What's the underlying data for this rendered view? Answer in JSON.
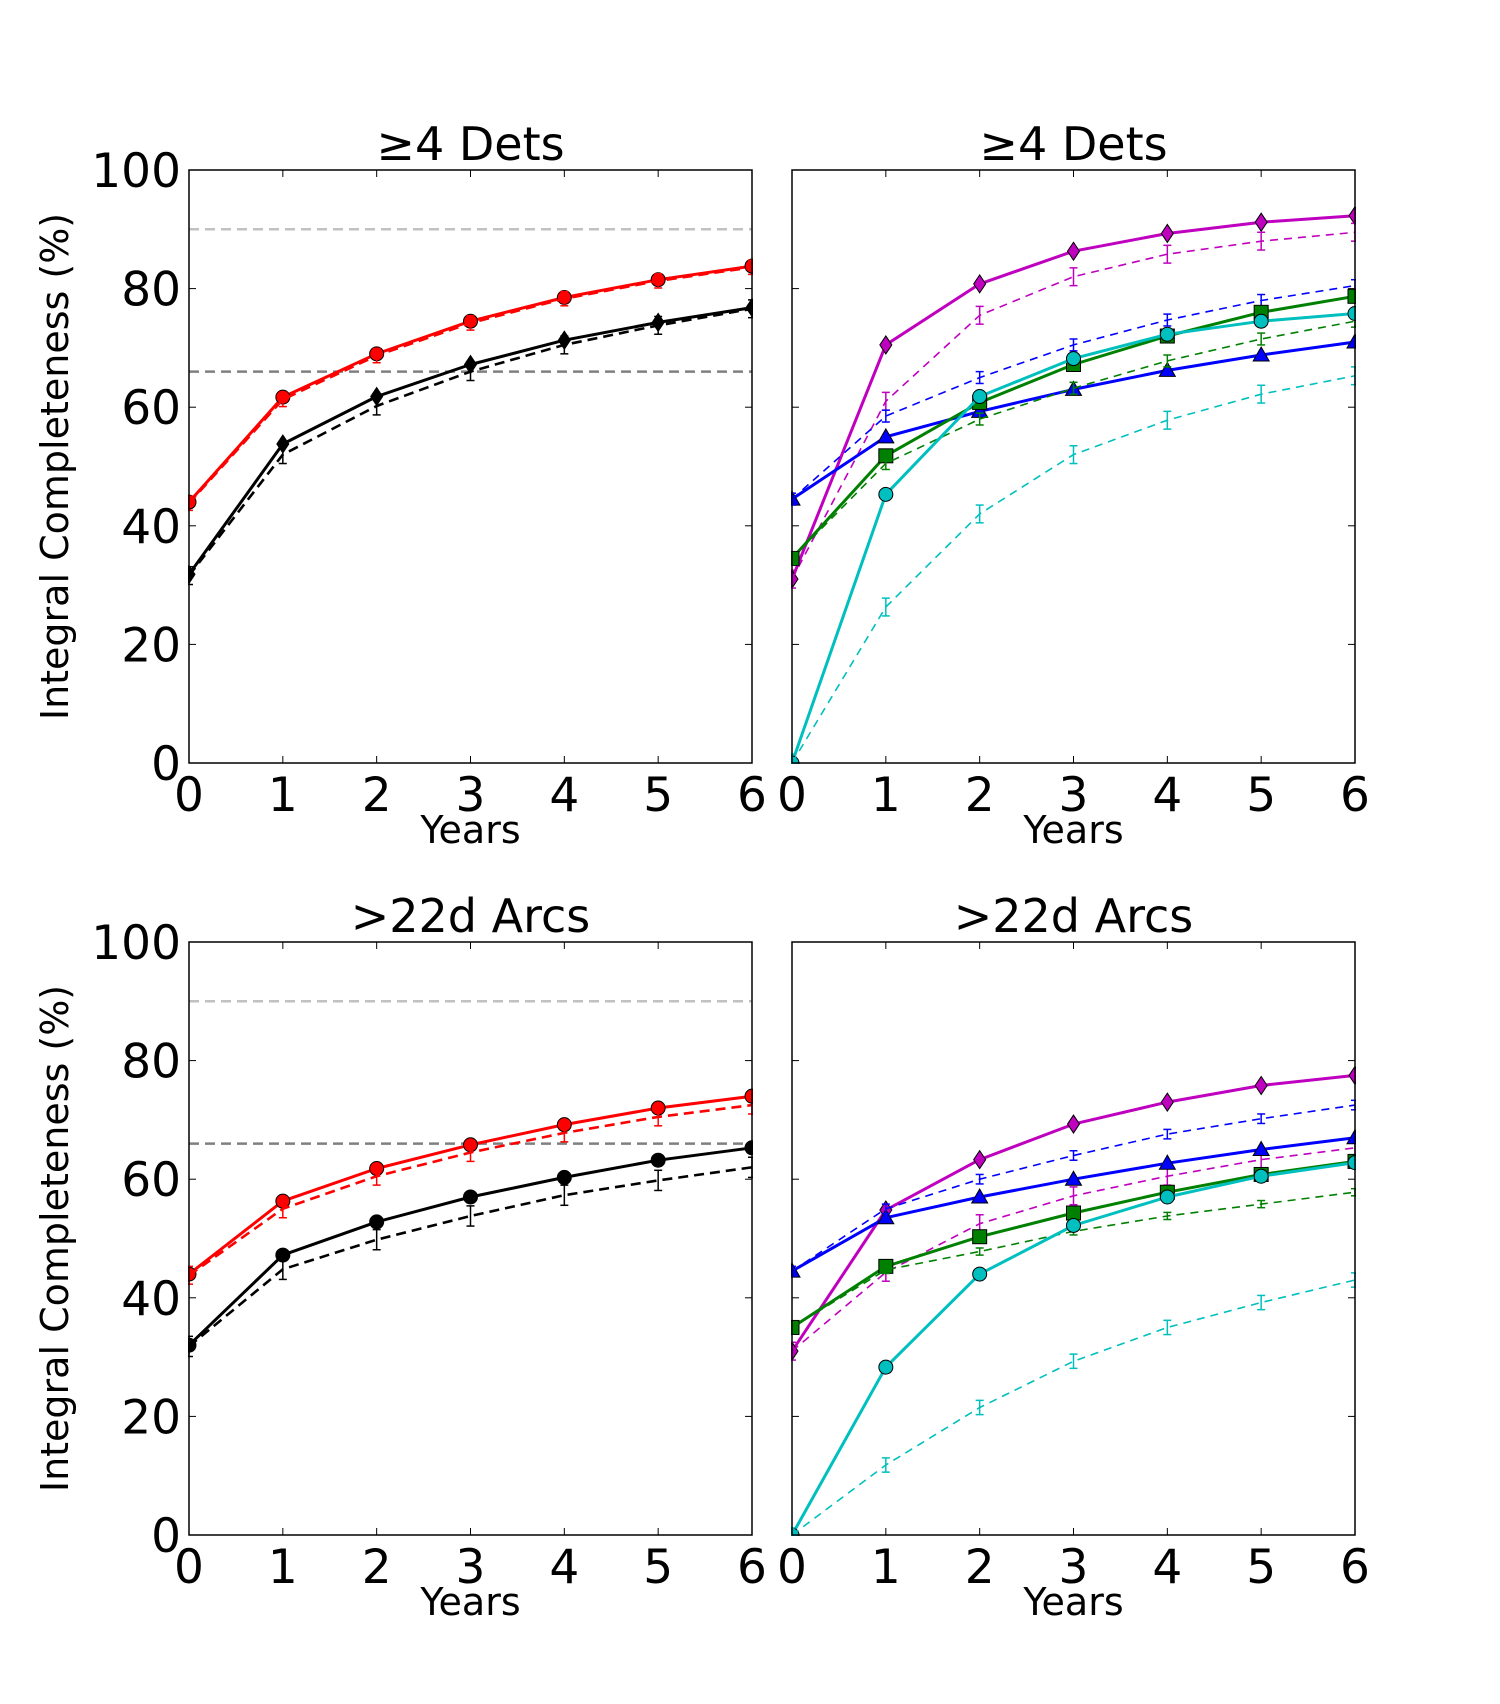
{
  "chart_data": [
    {
      "type": "line",
      "panel": "top-left",
      "title": "≥4 Dets",
      "xlabel": "Years",
      "ylabel": "Integral Completeness (%)",
      "xlim": [
        0,
        6
      ],
      "ylim": [
        0,
        100
      ],
      "xticks": [
        "0",
        "1",
        "2",
        "3",
        "4",
        "5",
        "6"
      ],
      "yticks": [
        "0",
        "20",
        "40",
        "60",
        "80",
        "100"
      ],
      "reference_lines": [
        {
          "y": 90,
          "color": "#c0c0c0"
        },
        {
          "y": 66,
          "color": "#808080"
        }
      ],
      "x": [
        0,
        1,
        2,
        3,
        4,
        5,
        6
      ],
      "series": [
        {
          "name": "red-solid",
          "color": "#ff0000",
          "dash": false,
          "marker": "circle",
          "values": [
            44,
            61.7,
            69,
            74.5,
            78.5,
            81.5,
            83.8
          ]
        },
        {
          "name": "red-dashed",
          "color": "#ff0000",
          "dash": true,
          "marker": "errorbar",
          "values": [
            43.8,
            61.3,
            68.7,
            74.2,
            78.3,
            81.3,
            83.6
          ],
          "err": 1.2
        },
        {
          "name": "black-solid",
          "color": "#000000",
          "dash": false,
          "marker": "thin_diamond",
          "values": [
            31.8,
            53.8,
            61.8,
            67.2,
            71.3,
            74.3,
            76.8
          ]
        },
        {
          "name": "black-dashed",
          "color": "#000000",
          "dash": true,
          "marker": "errorbar",
          "values": [
            31.6,
            52,
            60.2,
            66,
            70.5,
            73.8,
            76.6
          ],
          "err": 1.5
        }
      ]
    },
    {
      "type": "line",
      "panel": "top-right",
      "title": "≥4 Dets",
      "xlabel": "Years",
      "ylabel": "",
      "xlim": [
        0,
        6
      ],
      "ylim": [
        0,
        100
      ],
      "xticks": [
        "0",
        "1",
        "2",
        "3",
        "4",
        "5",
        "6"
      ],
      "yticks": [],
      "reference_lines": [],
      "x": [
        0,
        1,
        2,
        3,
        4,
        5,
        6
      ],
      "series": [
        {
          "name": "magenta-solid",
          "color": "#bf00bf",
          "dash": false,
          "marker": "thin_diamond",
          "values": [
            31,
            70.5,
            80.8,
            86.3,
            89.3,
            91.2,
            92.3
          ]
        },
        {
          "name": "magenta-dashed",
          "color": "#bf00bf",
          "dash": true,
          "marker": "errorbar",
          "values": [
            31,
            61,
            75.5,
            82,
            85.8,
            88,
            89.5
          ],
          "err": 1.5
        },
        {
          "name": "blue-solid",
          "color": "#0000ff",
          "dash": false,
          "marker": "triangle",
          "values": [
            44.5,
            55,
            59.3,
            63,
            66.2,
            68.8,
            71
          ]
        },
        {
          "name": "blue-dashed",
          "color": "#0000ff",
          "dash": true,
          "marker": "errorbar",
          "values": [
            44.5,
            58.5,
            65,
            70.5,
            74.7,
            78,
            80.5
          ],
          "err": 1.0
        },
        {
          "name": "green-solid",
          "color": "#008000",
          "dash": false,
          "marker": "square",
          "values": [
            34.5,
            51.8,
            60.8,
            67.2,
            72,
            76,
            78.7
          ]
        },
        {
          "name": "green-dashed",
          "color": "#008000",
          "dash": true,
          "marker": "errorbar",
          "values": [
            34.5,
            50.5,
            58,
            63.2,
            67.8,
            71.5,
            74.5
          ],
          "err": 1.0
        },
        {
          "name": "cyan-solid",
          "color": "#00bfbf",
          "dash": false,
          "marker": "circle",
          "values": [
            0,
            45.3,
            61.8,
            68.2,
            72.3,
            74.5,
            75.8
          ]
        },
        {
          "name": "cyan-dashed",
          "color": "#00bfbf",
          "dash": true,
          "marker": "errorbar",
          "values": [
            0,
            26.3,
            42,
            52,
            57.8,
            62.2,
            65.3
          ],
          "err": 1.5
        }
      ]
    },
    {
      "type": "line",
      "panel": "bottom-left",
      "title": ">22d Arcs",
      "xlabel": "Years",
      "ylabel": "Integral Completeness (%)",
      "xlim": [
        0,
        6
      ],
      "ylim": [
        0,
        100
      ],
      "xticks": [
        "0",
        "1",
        "2",
        "3",
        "4",
        "5",
        "6"
      ],
      "yticks": [
        "0",
        "20",
        "40",
        "60",
        "80",
        "100"
      ],
      "reference_lines": [
        {
          "y": 90,
          "color": "#c0c0c0"
        },
        {
          "y": 66,
          "color": "#808080"
        }
      ],
      "x": [
        0,
        1,
        2,
        3,
        4,
        5,
        6
      ],
      "series": [
        {
          "name": "red-solid",
          "color": "#ff0000",
          "dash": false,
          "marker": "circle",
          "values": [
            44,
            56.3,
            61.8,
            65.8,
            69.2,
            72,
            74
          ]
        },
        {
          "name": "red-dashed",
          "color": "#ff0000",
          "dash": true,
          "marker": "errorbar",
          "values": [
            43.8,
            55,
            60.5,
            64.5,
            67.8,
            70.5,
            72.5
          ],
          "err": 1.5
        },
        {
          "name": "black-solid",
          "color": "#000000",
          "dash": false,
          "marker": "circle",
          "values": [
            32,
            47.2,
            52.8,
            57,
            60.3,
            63.2,
            65.3
          ]
        },
        {
          "name": "black-dashed",
          "color": "#000000",
          "dash": true,
          "marker": "errorbar",
          "values": [
            31.8,
            44.8,
            49.8,
            53.8,
            57.3,
            59.8,
            62
          ],
          "err": 1.7
        }
      ]
    },
    {
      "type": "line",
      "panel": "bottom-right",
      "title": ">22d Arcs",
      "xlabel": "Years",
      "ylabel": "",
      "xlim": [
        0,
        6
      ],
      "ylim": [
        0,
        100
      ],
      "xticks": [
        "0",
        "1",
        "2",
        "3",
        "4",
        "5",
        "6"
      ],
      "yticks": [],
      "reference_lines": [],
      "x": [
        0,
        1,
        2,
        3,
        4,
        5,
        6
      ],
      "series": [
        {
          "name": "magenta-solid",
          "color": "#bf00bf",
          "dash": false,
          "marker": "thin_diamond",
          "values": [
            31,
            54.8,
            63.3,
            69.3,
            73,
            75.8,
            77.5
          ]
        },
        {
          "name": "magenta-dashed",
          "color": "#bf00bf",
          "dash": true,
          "marker": "errorbar",
          "values": [
            31,
            44.3,
            52.5,
            57.2,
            60.5,
            63.3,
            65.3
          ],
          "err": 1.5
        },
        {
          "name": "blue-solid",
          "color": "#0000ff",
          "dash": false,
          "marker": "triangle",
          "values": [
            44.5,
            53.5,
            57,
            60,
            62.7,
            65,
            67
          ]
        },
        {
          "name": "blue-dashed",
          "color": "#0000ff",
          "dash": true,
          "marker": "errorbar",
          "values": [
            44.5,
            55,
            60,
            64,
            67.6,
            70.2,
            72.5
          ],
          "err": 0.8
        },
        {
          "name": "green-solid",
          "color": "#008000",
          "dash": false,
          "marker": "square",
          "values": [
            35,
            45.3,
            50.3,
            54.3,
            57.8,
            60.8,
            63
          ]
        },
        {
          "name": "green-dashed",
          "color": "#008000",
          "dash": true,
          "marker": "errorbar",
          "values": [
            35,
            44.7,
            47.8,
            51.2,
            53.8,
            55.8,
            57.8
          ],
          "err": 0.6
        },
        {
          "name": "cyan-solid",
          "color": "#00bfbf",
          "dash": false,
          "marker": "circle",
          "values": [
            0,
            28.3,
            44,
            52.2,
            57,
            60.5,
            62.8
          ]
        },
        {
          "name": "cyan-dashed",
          "color": "#00bfbf",
          "dash": true,
          "marker": "errorbar",
          "values": [
            0,
            11.8,
            21.5,
            29.3,
            35,
            39.2,
            43
          ],
          "err": 1.2
        }
      ]
    }
  ]
}
